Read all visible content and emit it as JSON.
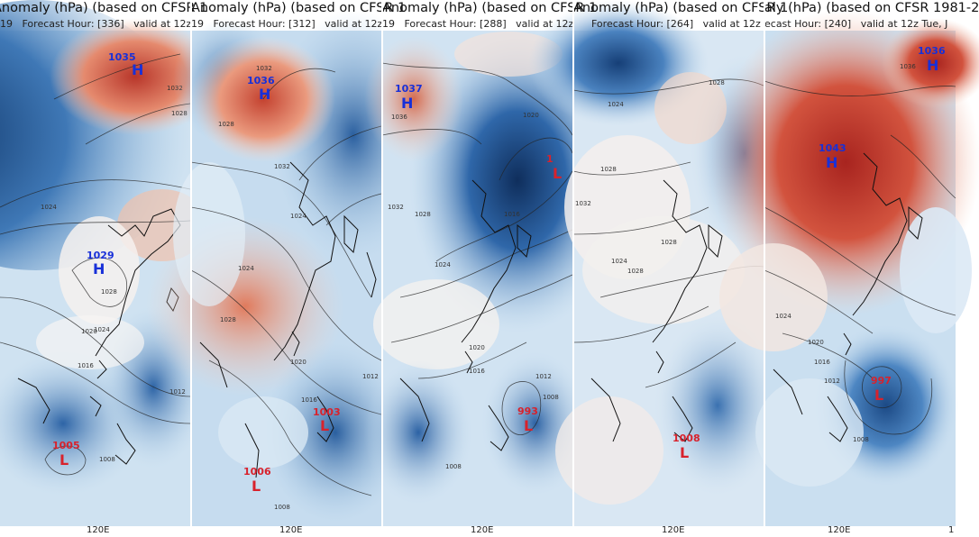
{
  "colors": {
    "positive": "#c53a2c",
    "negative": "#1f4f8a",
    "neutral": "#f3f1ef",
    "high_marker": "#1830d8",
    "low_marker": "#d8222c"
  },
  "panels": [
    {
      "title": "Anomaly (hPa) (based on CFSR 1",
      "prefix": "19",
      "forecast_hour": "Forecast Hour: [336]",
      "valid": "valid at 12z",
      "axis_label": "120E",
      "pressure_centers": [
        {
          "type": "H",
          "value": "1035"
        },
        {
          "type": "H",
          "value": "1029"
        },
        {
          "type": "L",
          "value": "1005"
        }
      ],
      "contour_labels": [
        "1032",
        "1028",
        "1024",
        "1020",
        "1016",
        "1012",
        "1008",
        "1028",
        "1024"
      ]
    },
    {
      "title": "Anomaly (hPa) (based on CFSR 1",
      "prefix": "19",
      "forecast_hour": "Forecast Hour: [312]",
      "valid": "valid at 12z",
      "axis_label": "120E",
      "pressure_centers": [
        {
          "type": "H",
          "value": "1036"
        },
        {
          "type": "L",
          "value": "1003"
        },
        {
          "type": "L",
          "value": "1006"
        }
      ],
      "contour_labels": [
        "1032",
        "1028",
        "1032",
        "1024",
        "1028",
        "1020",
        "1024",
        "1016",
        "1012",
        "1008"
      ]
    },
    {
      "title": "Anomaly (hPa) (based on CFSR 1",
      "prefix": "19",
      "forecast_hour": "Forecast Hour: [288]",
      "valid": "valid at 12z",
      "axis_label": "120E",
      "pressure_centers": [
        {
          "type": "H",
          "value": "1037"
        },
        {
          "type": "L",
          "value": "1"
        },
        {
          "type": "L",
          "value": "993"
        }
      ],
      "contour_labels": [
        "1036",
        "1032",
        "1020",
        "1028",
        "1016",
        "1024",
        "1020",
        "1016",
        "1012",
        "1008",
        "1008"
      ]
    },
    {
      "title": "Anomaly (hPa) (based on CFSR 1",
      "prefix": "",
      "forecast_hour": "Forecast Hour: [264]",
      "valid": "valid at 12z",
      "axis_label": "120E",
      "pressure_centers": [
        {
          "type": "L",
          "value": "1008"
        }
      ],
      "contour_labels": [
        "1028",
        "1024",
        "1032",
        "1028",
        "1028",
        "1024",
        "1028"
      ]
    },
    {
      "title": "aly (hPa) (based on CFSR 1981-2",
      "prefix": "",
      "forecast_hour": "ecast Hour: [240]",
      "valid": "valid at 12z Tue, J",
      "axis_label": "120E",
      "pressure_centers": [
        {
          "type": "H",
          "value": "1036"
        },
        {
          "type": "H",
          "value": "1043"
        },
        {
          "type": "L",
          "value": "997"
        }
      ],
      "contour_labels": [
        "1036",
        "1024",
        "1020",
        "1016",
        "1012",
        "1008"
      ]
    }
  ],
  "edge_axis_label": "1"
}
